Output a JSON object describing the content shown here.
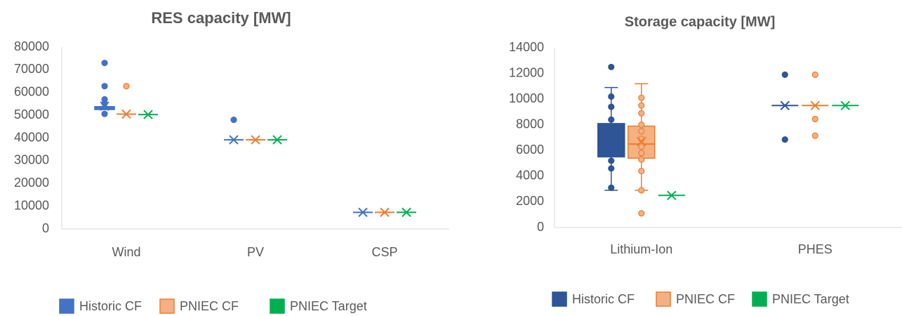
{
  "chart_data": [
    {
      "type": "box",
      "title": "RES capacity [MW]",
      "categories": [
        "Wind",
        "PV",
        "CSP"
      ],
      "ylim": [
        0,
        80000
      ],
      "yticks": [
        0,
        10000,
        20000,
        30000,
        40000,
        50000,
        60000,
        70000,
        80000
      ],
      "legend": "bottom",
      "series": [
        {
          "name": "Historic CF",
          "color": "#4472c4",
          "fill": "#4472c4",
          "values": [
            {
              "min": 52500,
              "q1": 52500,
              "median": 53000,
              "q3": 53800,
              "max": 53800,
              "mean": 54000,
              "points": [
                73000,
                62800,
                57000,
                55200,
                50600
              ]
            },
            {
              "min": 39200,
              "q1": 39200,
              "median": 39200,
              "q3": 39200,
              "max": 39200,
              "mean": 39200,
              "points": [
                48000
              ]
            },
            {
              "min": 7300,
              "q1": 7300,
              "median": 7300,
              "q3": 7300,
              "max": 7300,
              "mean": 7300,
              "points": []
            }
          ]
        },
        {
          "name": "PNIEC CF",
          "color": "#ed7d31",
          "fill": "#f4b183",
          "values": [
            {
              "min": 50500,
              "q1": 50500,
              "median": 50500,
              "q3": 50500,
              "max": 50500,
              "mean": 50500,
              "points": [
                62800
              ]
            },
            {
              "min": 39200,
              "q1": 39200,
              "median": 39200,
              "q3": 39200,
              "max": 39200,
              "mean": 39200,
              "points": []
            },
            {
              "min": 7300,
              "q1": 7300,
              "median": 7300,
              "q3": 7300,
              "max": 7300,
              "mean": 7300,
              "points": []
            }
          ]
        },
        {
          "name": "PNIEC Target",
          "color": "#00b050",
          "fill": "#00b050",
          "values": [
            {
              "min": 50300,
              "q1": 50300,
              "median": 50300,
              "q3": 50300,
              "max": 50300,
              "mean": 50300,
              "points": []
            },
            {
              "min": 39200,
              "q1": 39200,
              "median": 39200,
              "q3": 39200,
              "max": 39200,
              "mean": 39200,
              "points": []
            },
            {
              "min": 7300,
              "q1": 7300,
              "median": 7300,
              "q3": 7300,
              "max": 7300,
              "mean": 7300,
              "points": []
            }
          ]
        }
      ]
    },
    {
      "type": "box",
      "title": "Storage capacity [MW]",
      "categories": [
        "Lithium-Ion",
        "PHES"
      ],
      "ylim": [
        0,
        14000
      ],
      "yticks": [
        0,
        2000,
        4000,
        6000,
        8000,
        10000,
        12000,
        14000
      ],
      "legend": "bottom",
      "series": [
        {
          "name": "Historic CF",
          "color": "#2f5597",
          "fill": "#2f5597",
          "values": [
            {
              "min": 2900,
              "q1": 5500,
              "median": 6700,
              "q3": 8100,
              "max": 10900,
              "mean": 6700,
              "points": [
                12500,
                10200,
                9400,
                8400,
                7200,
                6900,
                6200,
                5900,
                5200,
                4600,
                3100
              ]
            },
            {
              "min": 9500,
              "q1": 9500,
              "median": 9500,
              "q3": 9500,
              "max": 9500,
              "mean": 9500,
              "points": [
                11900,
                6850
              ]
            }
          ]
        },
        {
          "name": "PNIEC CF",
          "color": "#ed7d31",
          "fill": "#f4b183",
          "values": [
            {
              "min": 2900,
              "q1": 5400,
              "median": 6500,
              "q3": 7900,
              "max": 11200,
              "mean": 6700,
              "points": [
                10100,
                9500,
                8900,
                8000,
                7500,
                6900,
                6300,
                5800,
                5300,
                4400,
                2900,
                1100
              ]
            },
            {
              "min": 9500,
              "q1": 9500,
              "median": 9500,
              "q3": 9500,
              "max": 9500,
              "mean": 9500,
              "points": [
                11900,
                8450,
                7150
              ]
            }
          ]
        },
        {
          "name": "PNIEC Target",
          "color": "#00b050",
          "fill": "#00b050",
          "values": [
            {
              "min": 2500,
              "q1": 2500,
              "median": 2500,
              "q3": 2500,
              "max": 2500,
              "mean": 2500,
              "points": []
            },
            {
              "min": 9500,
              "q1": 9500,
              "median": 9500,
              "q3": 9500,
              "max": 9500,
              "mean": 9500,
              "points": []
            }
          ]
        }
      ]
    }
  ]
}
